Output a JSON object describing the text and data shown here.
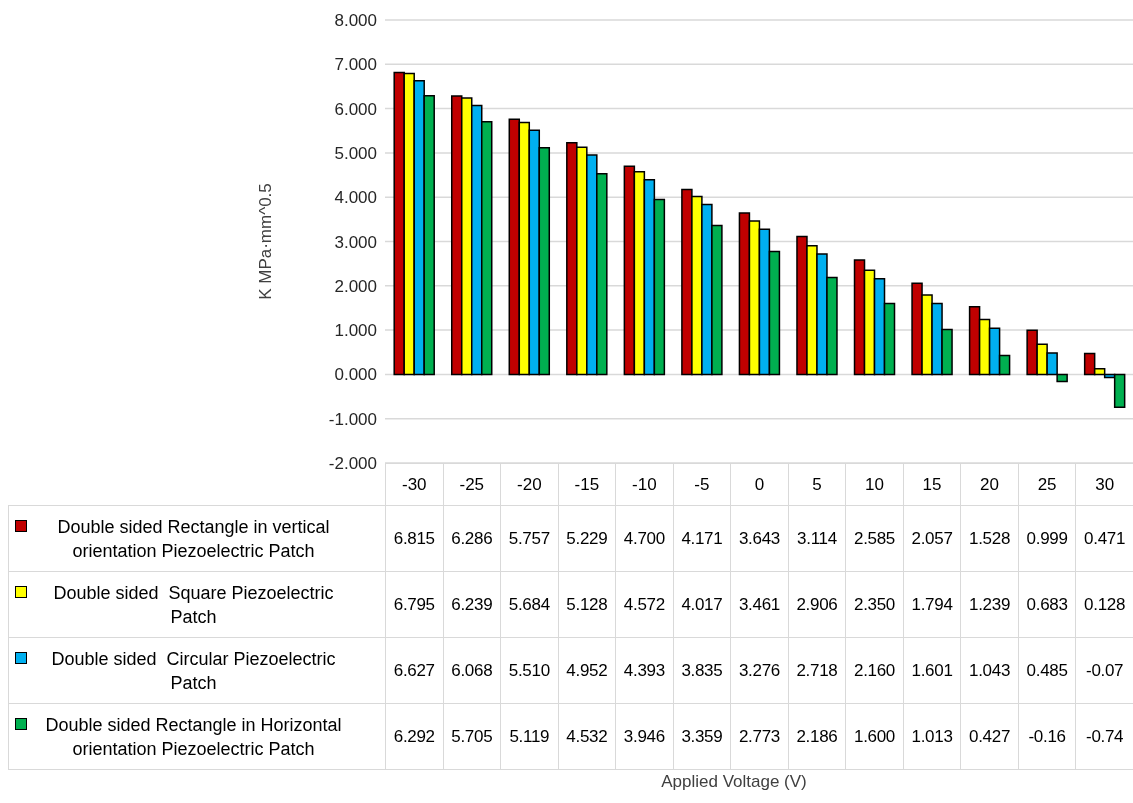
{
  "chart_data": {
    "type": "bar",
    "annotations": [
      "Applied Voltage (V)"
    ],
    "ylabel": "K  MPa·mm^0.5",
    "categories": [
      "-30",
      "-25",
      "-20",
      "-15",
      "-10",
      "-5",
      "0",
      "5",
      "10",
      "15",
      "20",
      "25",
      "30"
    ],
    "ylim": [
      -2,
      8
    ],
    "yticks": [
      {
        "value": -2,
        "label": "-2.000"
      },
      {
        "value": -1,
        "label": "-1.000"
      },
      {
        "value": 0,
        "label": "0.000"
      },
      {
        "value": 1,
        "label": "1.000"
      },
      {
        "value": 2,
        "label": "2.000"
      },
      {
        "value": 3,
        "label": "3.000"
      },
      {
        "value": 4,
        "label": "4.000"
      },
      {
        "value": 5,
        "label": "5.000"
      },
      {
        "value": 6,
        "label": "6.000"
      },
      {
        "value": 7,
        "label": "7.000"
      },
      {
        "value": 8,
        "label": "8.000"
      }
    ],
    "grid": "y",
    "legend": "bottom",
    "series": [
      {
        "name": "Double sided Rectangle in vertical orientation Piezoelectric Patch",
        "color": "#c00000",
        "values": [
          6.815,
          6.286,
          5.757,
          5.229,
          4.7,
          4.171,
          3.643,
          3.114,
          2.585,
          2.057,
          1.528,
          0.999,
          0.471
        ],
        "value_labels": [
          "6.815",
          "6.286",
          "5.757",
          "5.229",
          "4.700",
          "4.171",
          "3.643",
          "3.114",
          "2.585",
          "2.057",
          "1.528",
          "0.999",
          "0.471"
        ]
      },
      {
        "name": "Double sided  Square Piezoelectric Patch",
        "color": "#ffff00",
        "values": [
          6.795,
          6.239,
          5.684,
          5.128,
          4.572,
          4.017,
          3.461,
          2.906,
          2.35,
          1.794,
          1.239,
          0.683,
          0.128
        ],
        "value_labels": [
          "6.795",
          "6.239",
          "5.684",
          "5.128",
          "4.572",
          "4.017",
          "3.461",
          "2.906",
          "2.350",
          "1.794",
          "1.239",
          "0.683",
          "0.128"
        ]
      },
      {
        "name": "Double sided  Circular Piezoelectric Patch",
        "color": "#00b0f0",
        "values": [
          6.627,
          6.068,
          5.51,
          4.952,
          4.393,
          3.835,
          3.276,
          2.718,
          2.16,
          1.601,
          1.043,
          0.485,
          -0.07
        ],
        "value_labels": [
          "6.627",
          "6.068",
          "5.510",
          "4.952",
          "4.393",
          "3.835",
          "3.276",
          "2.718",
          "2.160",
          "1.601",
          "1.043",
          "0.485",
          "-0.07"
        ]
      },
      {
        "name": "Double sided Rectangle in Horizontal orientation Piezoelectric Patch",
        "color": "#00b050",
        "values": [
          6.292,
          5.705,
          5.119,
          4.532,
          3.946,
          3.359,
          2.773,
          2.186,
          1.6,
          1.013,
          0.427,
          -0.16,
          -0.74
        ],
        "value_labels": [
          "6.292",
          "5.705",
          "5.119",
          "4.532",
          "3.946",
          "3.359",
          "2.773",
          "2.186",
          "1.600",
          "1.013",
          "0.427",
          "-0.16",
          "-0.74"
        ]
      }
    ]
  }
}
